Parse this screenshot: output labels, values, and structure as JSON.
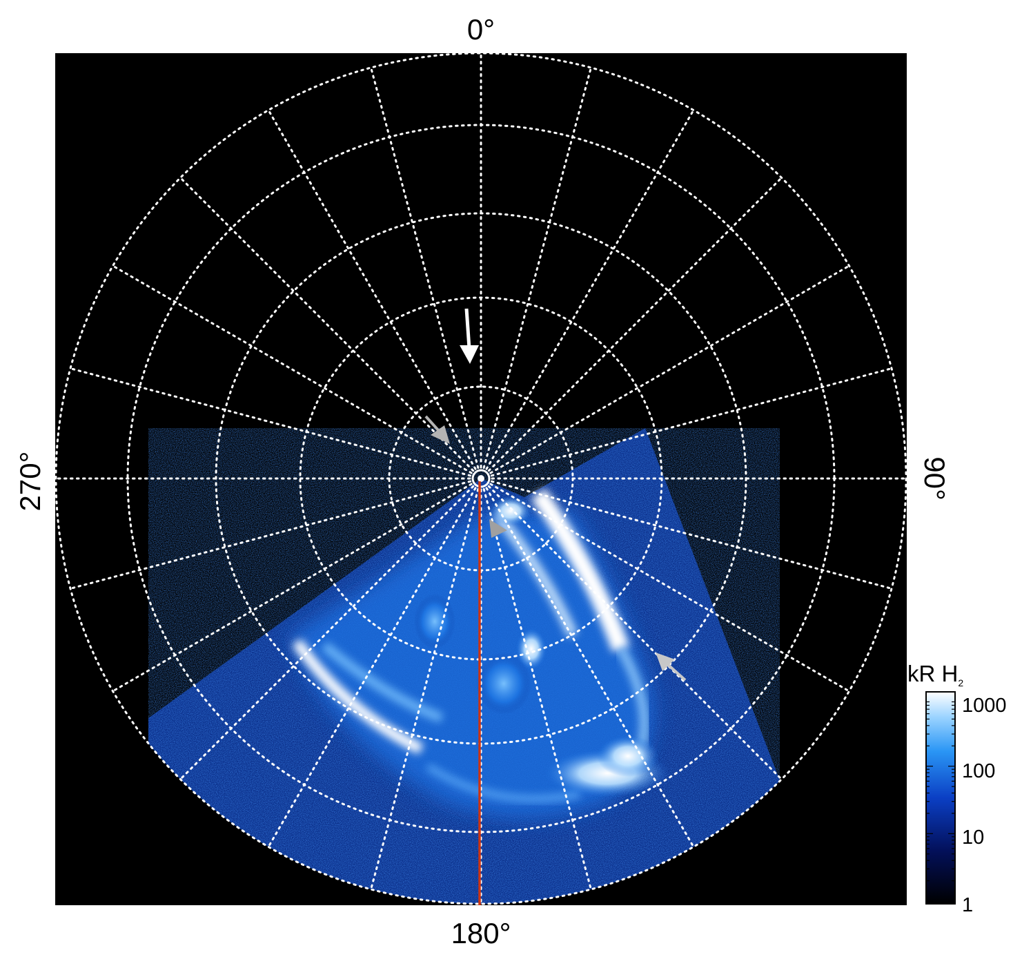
{
  "labels": {
    "top": "0°",
    "right": "90°",
    "bottom": "180°",
    "left": "270°"
  },
  "colorbar": {
    "title_main": "kR H",
    "title_sub": "2",
    "ticks": [
      "1000",
      "100",
      "10",
      "1"
    ]
  },
  "colors": {
    "background": "#000000",
    "grid": "#ffffff",
    "aurora_dark": "#0a1f66",
    "aurora_mid": "#1e78e6",
    "aurora_bright": "#ffffff",
    "meridian": "#cc3311",
    "pointer_white": "#ffffff",
    "pointer_grey": "#b4b4b4"
  },
  "pointers": [
    {
      "name": "white-arrow-north",
      "color": "white"
    },
    {
      "name": "grey-arrow-upper-left",
      "color": "grey"
    },
    {
      "name": "grey-arrow-center",
      "color": "grey"
    },
    {
      "name": "grey-arrow-right",
      "color": "grey"
    }
  ]
}
